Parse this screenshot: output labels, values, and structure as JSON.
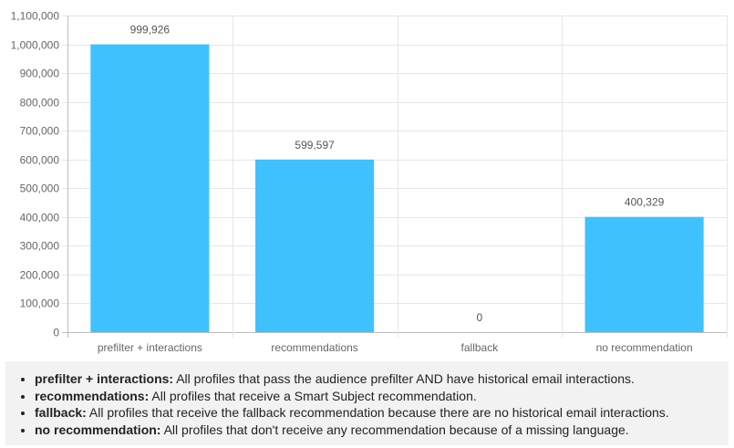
{
  "chart_data": {
    "type": "bar",
    "categories": [
      "prefilter + interactions",
      "recommendations",
      "fallback",
      "no recommendation"
    ],
    "values": [
      999926,
      599597,
      0,
      400329
    ],
    "data_labels": [
      "999,926",
      "599,597",
      "0",
      "400,329"
    ],
    "y_ticks": [
      0,
      100000,
      200000,
      300000,
      400000,
      500000,
      600000,
      700000,
      800000,
      900000,
      1000000,
      1100000
    ],
    "y_tick_labels": [
      "0",
      "100,000",
      "200,000",
      "300,000",
      "400,000",
      "500,000",
      "600,000",
      "700,000",
      "800,000",
      "900,000",
      "1,000,000",
      "1,100,000"
    ],
    "ylim": [
      0,
      1100000
    ],
    "grid": true,
    "bar_color": "#3fc1fd",
    "title": "",
    "xlabel": "",
    "ylabel": ""
  },
  "notes": [
    {
      "term": "prefilter + interactions:",
      "text": " All profiles that pass the audience prefilter AND have historical email interactions."
    },
    {
      "term": "recommendations:",
      "text": " All profiles that receive a Smart Subject recommendation."
    },
    {
      "term": "fallback:",
      "text": " All profiles that receive the fallback recommendation because there are no historical email interactions."
    },
    {
      "term": "no recommendation:",
      "text": " All profiles that don't receive any recommendation because of a missing language."
    }
  ]
}
